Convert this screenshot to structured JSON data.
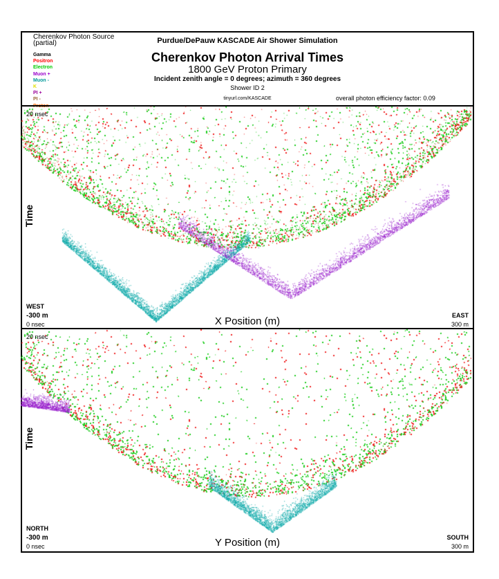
{
  "header": {
    "source_title": "Cherenkov Photon Source",
    "source_subtitle": "(partial)",
    "title_main": "Purdue/DePauw KASCADE Air Shower Simulation",
    "title_big": "Cherenkov Photon Arrival Times",
    "title_primary": "1800 GeV Proton Primary",
    "angles": "Incident zenith angle =  0 degrees;  azimuth =  360 degrees",
    "shower_id": "Shower ID 2",
    "url": "tinyurl.com/KASCADE",
    "efficiency": "overall photon efficiency factor: 0.09"
  },
  "legend": [
    {
      "name": "Gamma",
      "color": "#000000"
    },
    {
      "name": "Positron",
      "color": "#ff0000"
    },
    {
      "name": "Electron",
      "color": "#00cc00"
    },
    {
      "name": "Muon +",
      "color": "#9900cc"
    },
    {
      "name": "Muon -",
      "color": "#009999"
    },
    {
      "name": "K",
      "color": "#e0e000"
    },
    {
      "name": "PI +",
      "color": "#990099"
    },
    {
      "name": "PI -",
      "color": "#996633"
    },
    {
      "name": "Proton",
      "color": "#ff6600"
    }
  ],
  "chart_data": [
    {
      "type": "scatter",
      "xlabel": "X Position (m)",
      "ylabel": "Time",
      "x_range_m": [
        -300,
        300
      ],
      "y_range_ns": [
        0,
        20
      ],
      "x_min_label": "-300 m",
      "x_max_label": "300 m",
      "y_min_label": "0 nsec",
      "y_max_label": "20 nsec",
      "left_direction": "WEST",
      "right_direction": "EAST",
      "series": [
        {
          "name": "Electron",
          "color": "#22cc22",
          "note_shape": "broad parabola, minimum ~7 ns near x=0"
        },
        {
          "name": "Positron",
          "color": "#ee2222"
        },
        {
          "name": "Muon -",
          "color": "#11aaaa",
          "valley_x_m": -120,
          "valley_t_ns": 0.3
        },
        {
          "name": "Muon +",
          "color": "#9922cc",
          "valley_x_m": 60,
          "valley_t_ns": 2.4
        }
      ]
    },
    {
      "type": "scatter",
      "xlabel": "Y Position (m)",
      "ylabel": "Time",
      "x_range_m": [
        -300,
        300
      ],
      "y_range_ns": [
        0,
        20
      ],
      "x_min_label": "-300 m",
      "x_max_label": "300 m",
      "y_min_label": "0 nsec",
      "y_max_label": "20 nsec",
      "left_direction": "NORTH",
      "right_direction": "SOUTH",
      "series": [
        {
          "name": "Electron",
          "color": "#22cc22"
        },
        {
          "name": "Positron",
          "color": "#ee2222"
        },
        {
          "name": "Muon -",
          "color": "#11aaaa",
          "valley_x_m": 35,
          "valley_t_ns": 1.5
        },
        {
          "name": "Muon +",
          "color": "#9922cc",
          "shelf_x_m": -300,
          "shelf_t_ns": 13.5
        }
      ]
    }
  ]
}
